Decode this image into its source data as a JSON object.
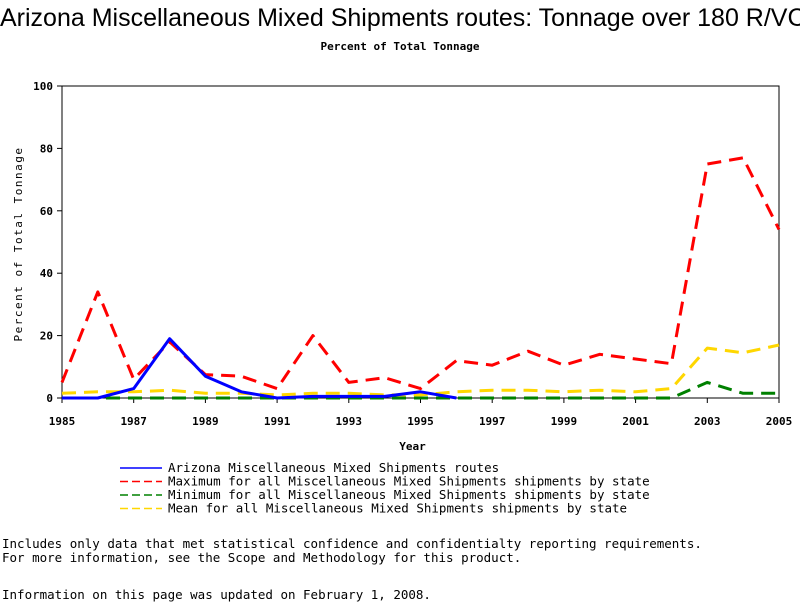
{
  "chart_data": {
    "type": "line",
    "title": "Arizona Miscellaneous Mixed Shipments routes: Tonnage over 180 R/VC",
    "subtitle": "Percent of Total Tonnage",
    "xlabel": "Year",
    "ylabel": "Percent of Total Tonnage",
    "xlim": [
      1985,
      2005
    ],
    "ylim": [
      0,
      100
    ],
    "x_ticks": [
      "1985",
      "1987",
      "1989",
      "1991",
      "1993",
      "1995",
      "1997",
      "1999",
      "2001",
      "2003",
      "2005"
    ],
    "y_ticks": [
      "0",
      "20",
      "40",
      "60",
      "80",
      "100"
    ],
    "grid": false,
    "legend_position": "bottom",
    "series": [
      {
        "name": "Arizona Miscellaneous Mixed Shipments routes",
        "color": "#0000ff",
        "style": "solid",
        "x": [
          1985,
          1986,
          1987,
          1988,
          1989,
          1990,
          1991,
          1992,
          1993,
          1994,
          1995,
          1996
        ],
        "values": [
          0,
          0,
          3,
          19,
          7,
          2,
          0,
          0.5,
          0.5,
          0.5,
          2,
          0
        ]
      },
      {
        "name": "Maximum for all Miscellaneous Mixed Shipments shipments by state",
        "color": "#ff0000",
        "style": "dashed",
        "x": [
          1985,
          1986,
          1987,
          1988,
          1989,
          1990,
          1991,
          1992,
          1993,
          1994,
          1995,
          1996,
          1997,
          1998,
          1999,
          2000,
          2001,
          2002,
          2003,
          2004,
          2005
        ],
        "values": [
          5,
          34,
          6,
          18,
          7.5,
          7,
          3,
          20,
          5,
          6.5,
          3,
          12,
          10.5,
          15,
          10.5,
          14,
          12.5,
          11,
          75,
          77,
          54
        ]
      },
      {
        "name": "Minimum for all Miscellaneous Mixed Shipments shipments by state",
        "color": "#008000",
        "style": "dashed",
        "x": [
          1985,
          1986,
          1987,
          1988,
          1989,
          1990,
          1991,
          1992,
          1993,
          1994,
          1995,
          1996,
          1997,
          1998,
          1999,
          2000,
          2001,
          2002,
          2003,
          2004,
          2005
        ],
        "values": [
          0,
          0,
          0,
          0,
          0,
          0,
          0,
          0,
          0,
          0,
          0,
          0,
          0,
          0,
          0,
          0,
          0,
          0,
          5,
          1.5,
          1.5
        ]
      },
      {
        "name": "Mean for all Miscellaneous Mixed Shipments shipments by state",
        "color": "#ffd700",
        "style": "dashed",
        "x": [
          1985,
          1986,
          1987,
          1988,
          1989,
          1990,
          1991,
          1992,
          1993,
          1994,
          1995,
          1996,
          1997,
          1998,
          1999,
          2000,
          2001,
          2002,
          2003,
          2004,
          2005
        ],
        "values": [
          1.5,
          2,
          2,
          2.5,
          1.5,
          1.5,
          1,
          1.5,
          1.5,
          1,
          1,
          2,
          2.5,
          2.5,
          2,
          2.5,
          2,
          3,
          16,
          14.5,
          17
        ]
      }
    ]
  },
  "footnotes": {
    "line1": "Includes only data that met statistical confidence and confidentialty reporting requirements.",
    "line2": "For more information, see the Scope and Methodology for this product.",
    "line3": "Information on this page was updated on February 1, 2008."
  }
}
